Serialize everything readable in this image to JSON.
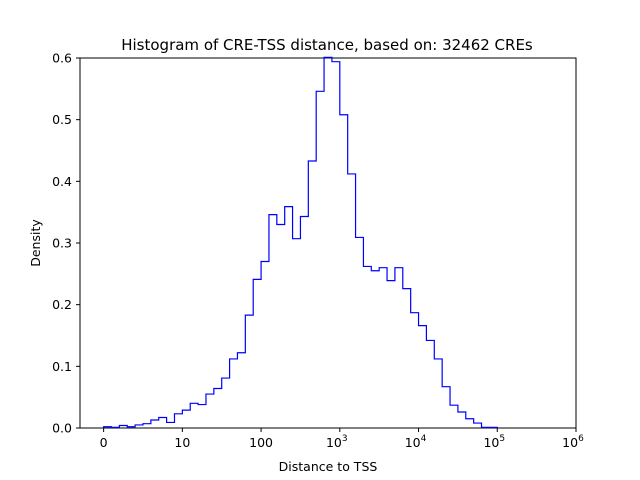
{
  "chart_data": {
    "type": "histogram",
    "title": "Histogram of CRE-TSS distance, based on: 32462 CREs",
    "xlabel": "Distance to TSS",
    "ylabel": "Density",
    "xscale": "symlog-like (0, then log10)",
    "x_tick_labels": [
      {
        "base": "0",
        "exp": ""
      },
      {
        "base": "10",
        "exp": ""
      },
      {
        "base": "100",
        "exp": ""
      },
      {
        "base": "10",
        "exp": "3"
      },
      {
        "base": "10",
        "exp": "4"
      },
      {
        "base": "10",
        "exp": "5"
      },
      {
        "base": "10",
        "exp": "6"
      }
    ],
    "y_ticks": [
      0.0,
      0.1,
      0.2,
      0.3,
      0.4,
      0.5,
      0.6
    ],
    "y_tick_labels": [
      "0.0",
      "0.1",
      "0.2",
      "0.3",
      "0.4",
      "0.5",
      "0.6"
    ],
    "ylim": [
      0,
      0.6
    ],
    "x_range_decades": [
      -0.3,
      6
    ],
    "bin_start_decades": 0,
    "bin_width_decades": 0.1,
    "densities": [
      0.002,
      0.001,
      0.004,
      0.002,
      0.005,
      0.007,
      0.013,
      0.017,
      0.009,
      0.023,
      0.029,
      0.04,
      0.038,
      0.055,
      0.064,
      0.081,
      0.112,
      0.122,
      0.183,
      0.241,
      0.27,
      0.346,
      0.33,
      0.359,
      0.307,
      0.343,
      0.433,
      0.546,
      0.601,
      0.594,
      0.508,
      0.412,
      0.309,
      0.262,
      0.255,
      0.26,
      0.239,
      0.26,
      0.226,
      0.187,
      0.166,
      0.142,
      0.112,
      0.067,
      0.037,
      0.026,
      0.015,
      0.008,
      0.001,
      0.001
    ],
    "line_color": "#0000ff",
    "grid": false,
    "legend": "none"
  }
}
